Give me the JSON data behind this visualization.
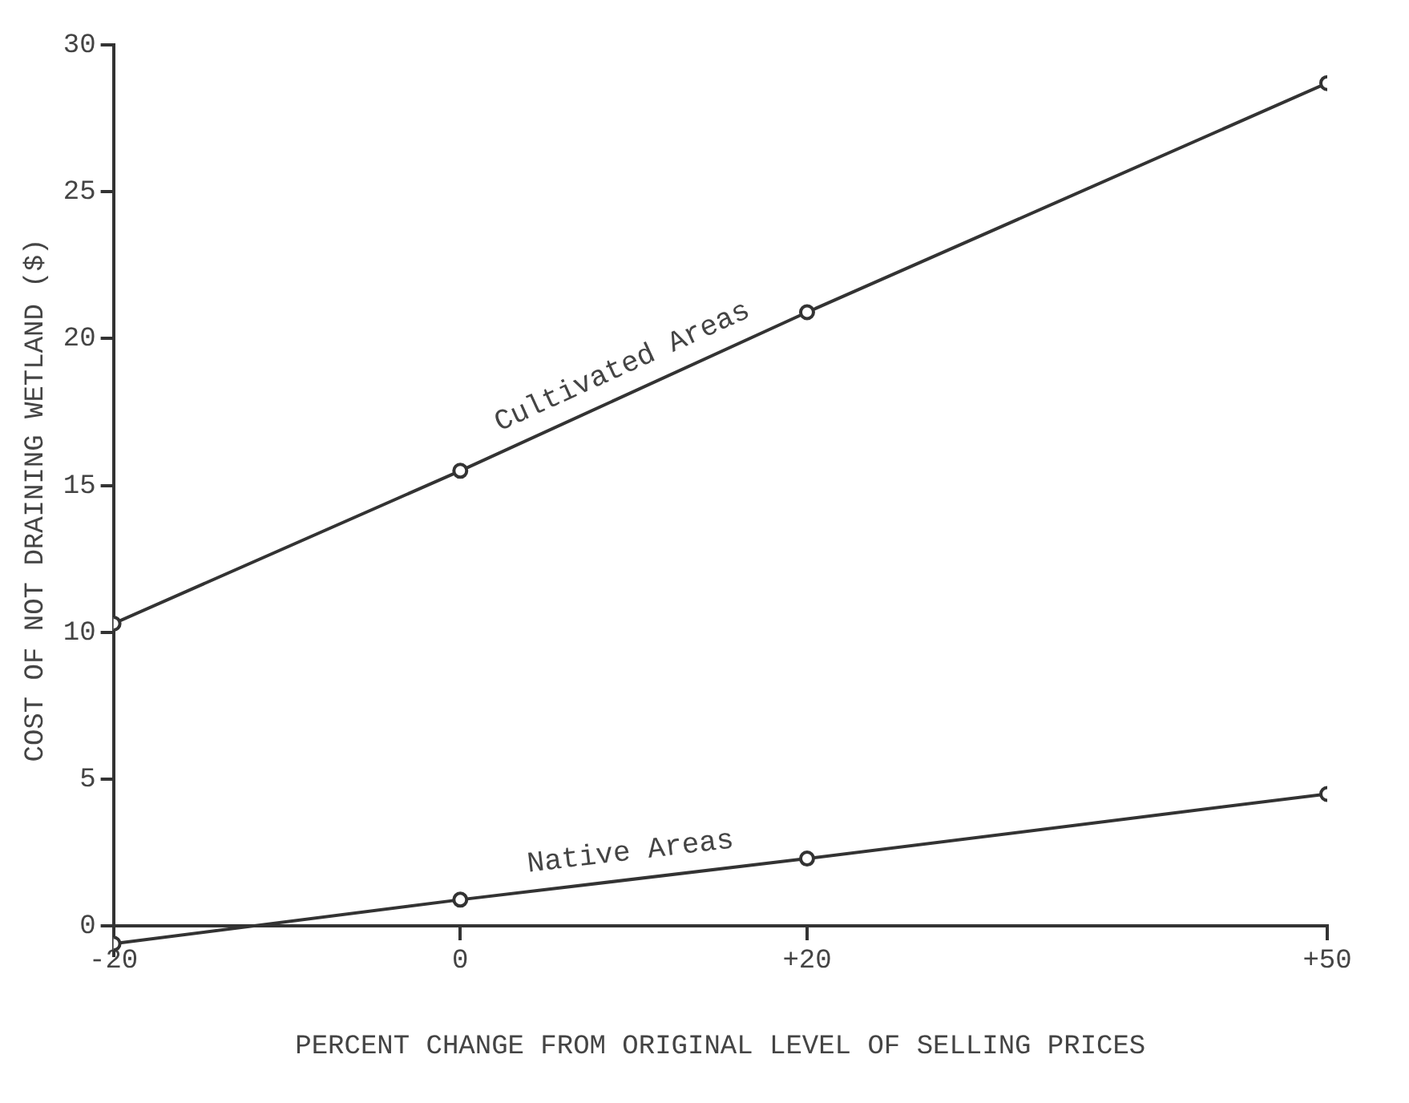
{
  "chart_data": {
    "type": "line",
    "xlabel": "PERCENT CHANGE FROM ORIGINAL LEVEL OF SELLING PRICES",
    "ylabel": "COST OF NOT DRAINING WETLAND ($)",
    "x": [
      -20,
      0,
      20,
      50
    ],
    "series": [
      {
        "name": "Cultivated Areas",
        "color": "#333333",
        "values": [
          10.3,
          15.5,
          20.9,
          28.7
        ]
      },
      {
        "name": "Native Areas",
        "color": "#333333",
        "values": [
          -0.6,
          0.9,
          2.3,
          4.5
        ]
      }
    ],
    "xlim": [
      -20,
      50
    ],
    "xticks": [
      -20,
      0,
      {
        "value": 20,
        "label": "+20"
      },
      {
        "value": 50,
        "label": "+50"
      }
    ],
    "ylim": [
      -1,
      30
    ],
    "yticks": [
      0,
      5,
      10,
      15,
      20,
      25,
      30
    ],
    "grid": false,
    "legend": false,
    "marker": "circle",
    "line_style": "solid"
  }
}
